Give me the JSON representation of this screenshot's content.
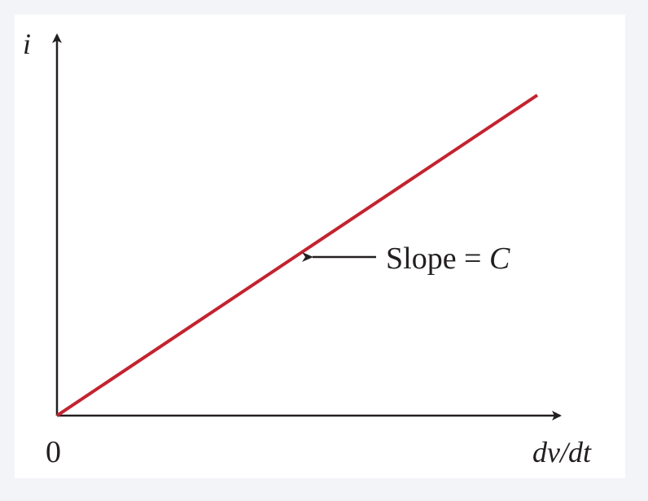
{
  "chart_data": {
    "type": "line",
    "title": "",
    "xlabel": "dv/dt",
    "ylabel": "i",
    "origin_label": "0",
    "series": [
      {
        "x": [
          0,
          1
        ],
        "y": [
          0,
          1
        ],
        "color": "#c3232f"
      }
    ],
    "annotation": {
      "text_prefix": "Slope = ",
      "text_symbol": "C",
      "points_to": "line"
    },
    "axis_color": "#231f20",
    "grid": false,
    "legend": "none"
  }
}
